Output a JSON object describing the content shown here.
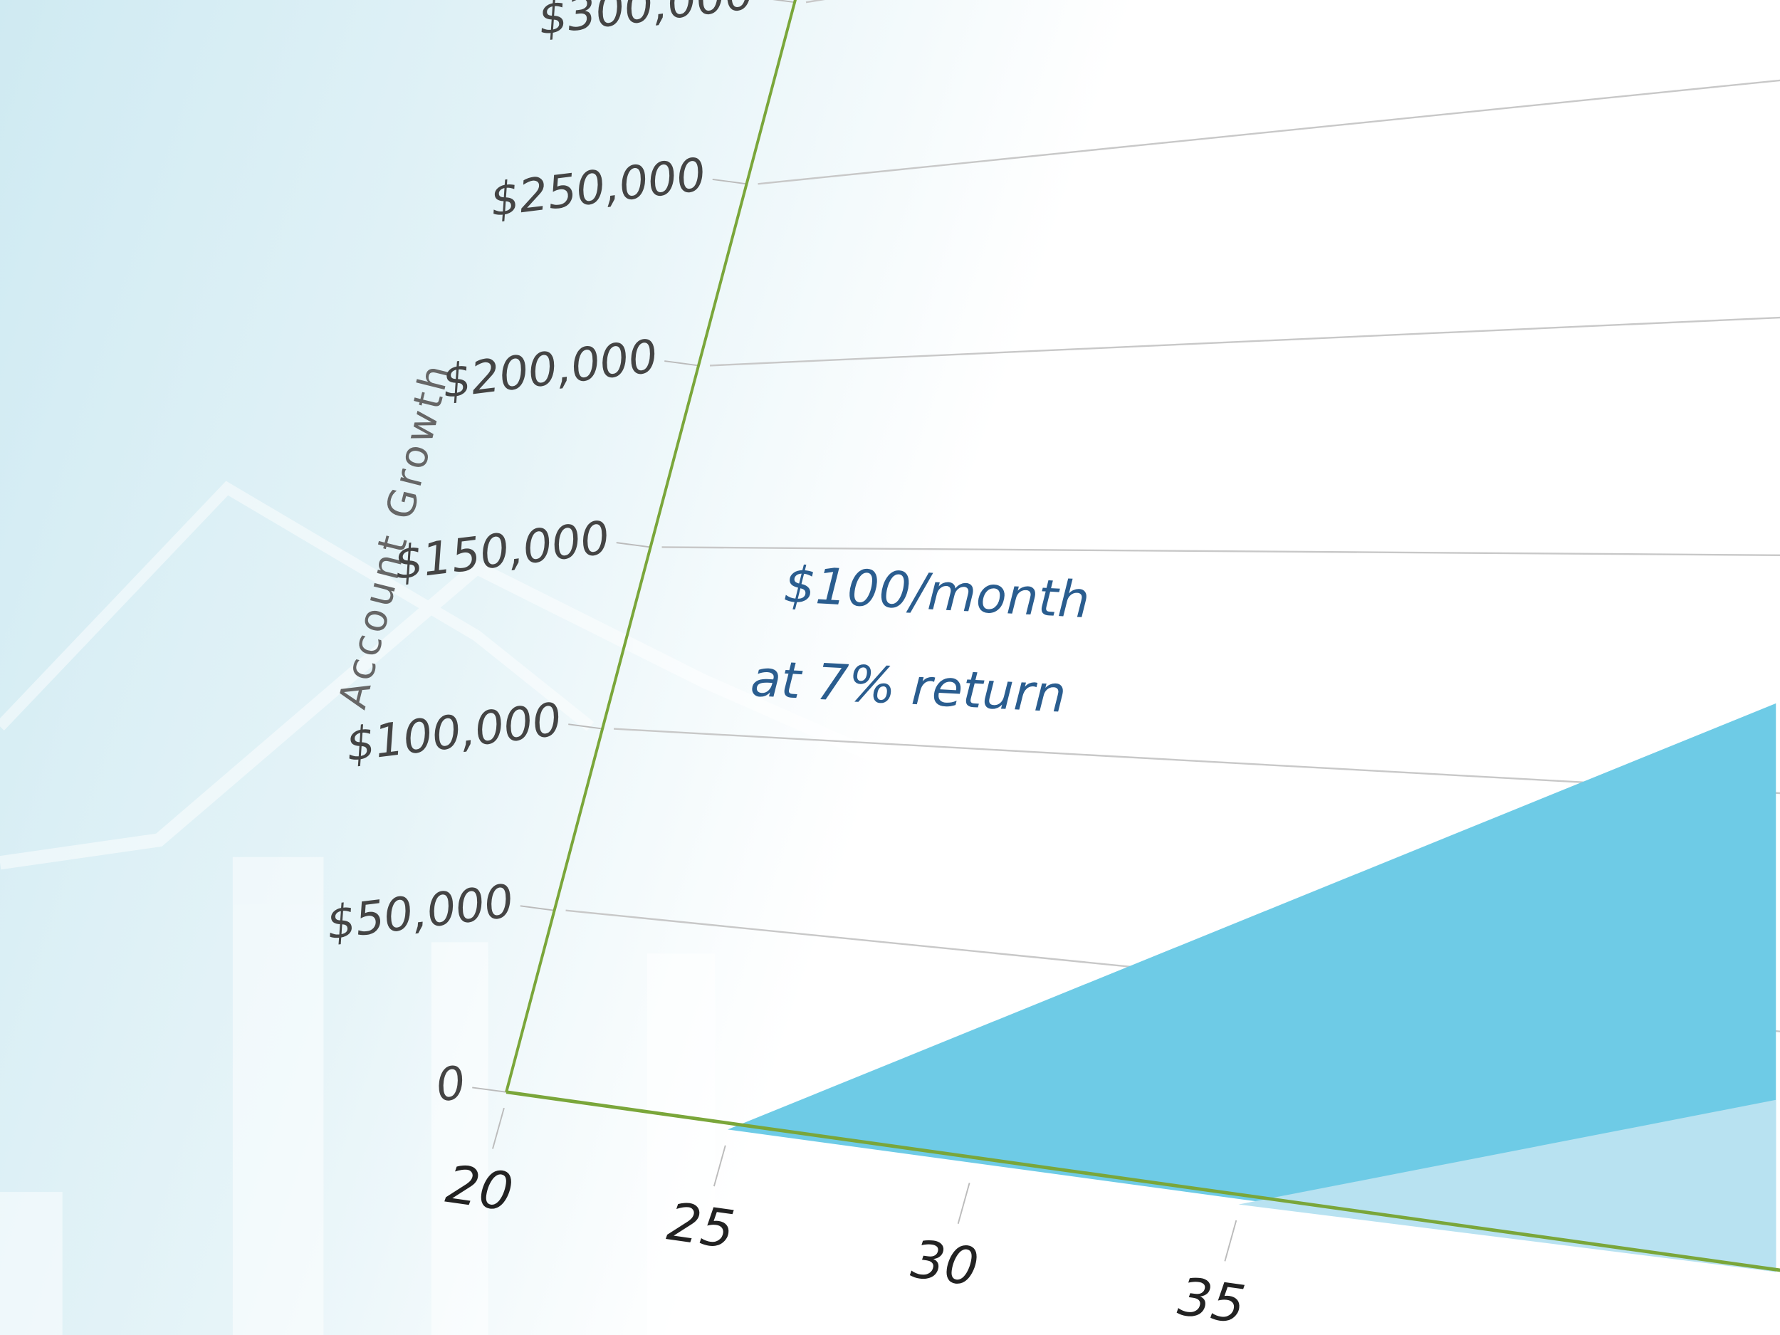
{
  "chart_data": {
    "type": "area",
    "ylabel": "Account Growth",
    "annotations": [
      "$100/month",
      "at 7% return"
    ],
    "xlim": [
      20,
      44
    ],
    "xticks": [
      20,
      25,
      30,
      35
    ],
    "ylim": [
      0,
      300000
    ],
    "yticks": [
      0,
      {
        "value": 50000,
        "label": "$50,000"
      },
      {
        "value": 100000,
        "label": "$100,000"
      },
      {
        "value": 150000,
        "label": "$150,000"
      },
      {
        "value": 200000,
        "label": "$200,000"
      },
      {
        "value": 250000,
        "label": "$250,000"
      },
      {
        "value": 300000,
        "label": "$300,000"
      }
    ],
    "grid": true,
    "series": [
      {
        "color": "#6ecbe6",
        "x": [
          25,
          44
        ],
        "values": [
          0,
          119000
        ]
      },
      {
        "color": "#b8e2f1",
        "x": [
          35,
          44
        ],
        "values": [
          0,
          36000
        ]
      }
    ]
  }
}
